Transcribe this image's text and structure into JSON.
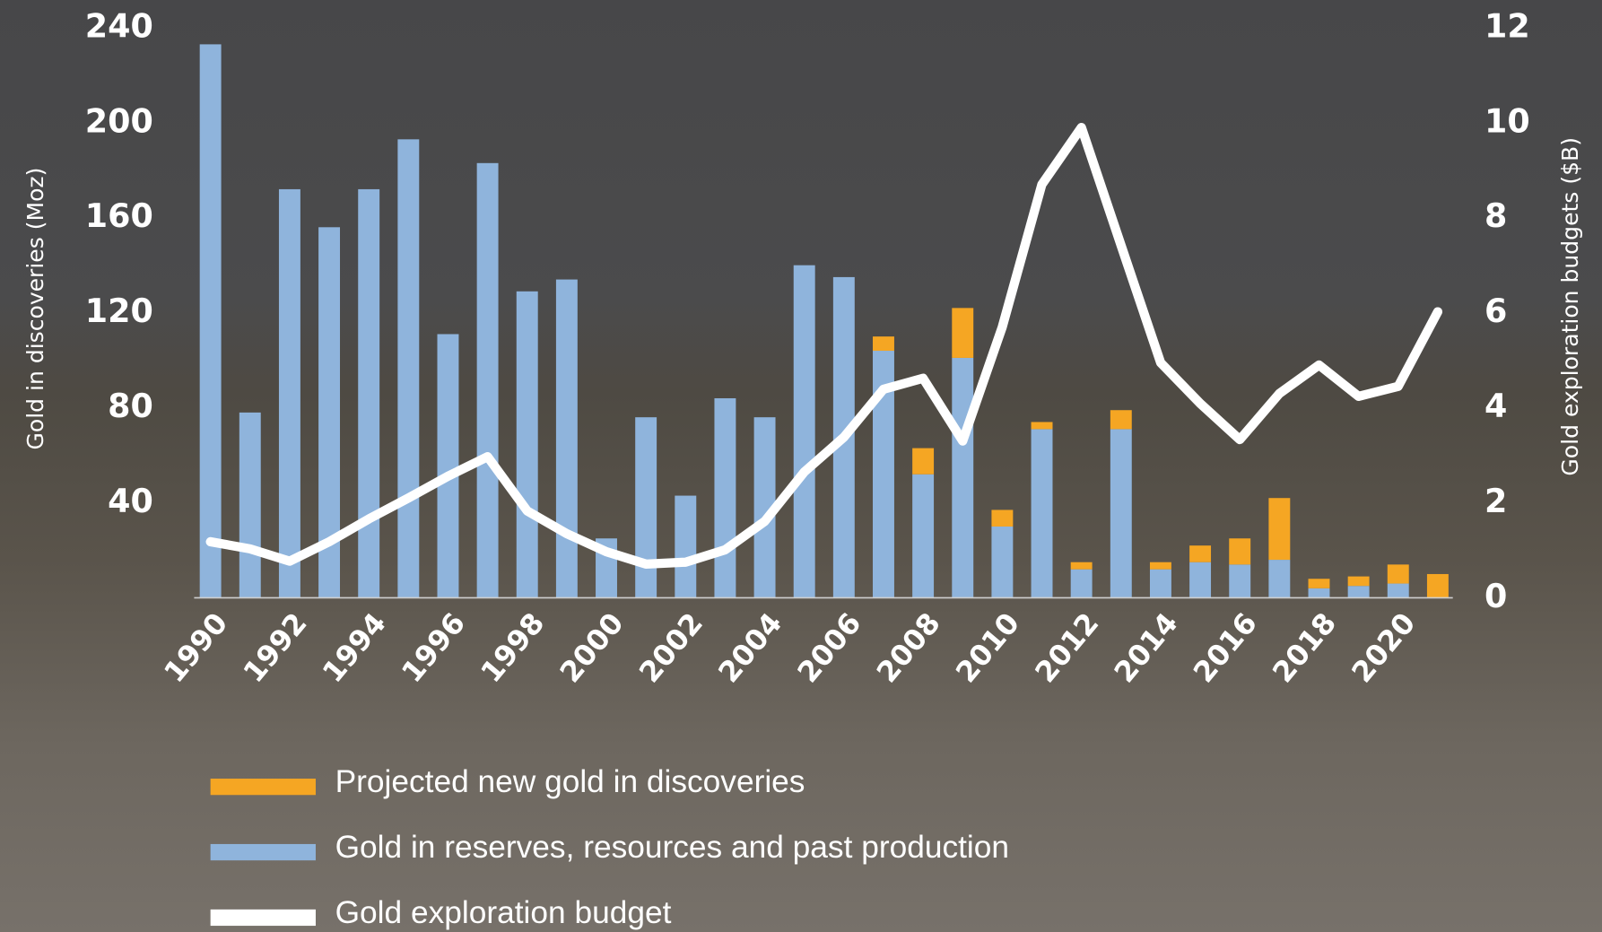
{
  "chart_data": {
    "type": "bar",
    "stacked": true,
    "y_label": "Gold in discoveries (Moz)",
    "y2_label": "Gold exploration budgets ($B)",
    "categories": [
      "1990",
      null,
      "1992",
      null,
      "1994",
      null,
      "1996",
      null,
      "1998",
      null,
      "2000",
      null,
      "2002",
      null,
      "2004",
      null,
      "2006",
      null,
      "2008",
      null,
      "2010",
      null,
      "2012",
      null,
      "2014",
      null,
      "2016",
      null,
      "2018",
      null,
      "2020",
      null
    ],
    "ylim": [
      0,
      240
    ],
    "yticks": [
      40,
      80,
      120,
      160,
      200,
      240
    ],
    "y2lim": [
      0,
      12
    ],
    "y2ticks": [
      0,
      2,
      4,
      6,
      8,
      10,
      12
    ],
    "series": [
      {
        "name": "Gold in reserves, resources and past production",
        "color": "#8fb4dc",
        "values": [
          233,
          78,
          172,
          156,
          172,
          193,
          111,
          183,
          129,
          134,
          25,
          76,
          43,
          84,
          76,
          140,
          135,
          104,
          52,
          101,
          30,
          71,
          12,
          71,
          12,
          15,
          14,
          16,
          4,
          5,
          6,
          0
        ]
      },
      {
        "name": "Projected new gold in discoveries",
        "color": "#f5a623",
        "values": [
          0,
          0,
          0,
          0,
          0,
          0,
          0,
          0,
          0,
          0,
          0,
          0,
          0,
          0,
          0,
          0,
          0,
          6,
          11,
          21,
          7,
          3,
          3,
          8,
          3,
          7,
          11,
          26,
          4,
          4,
          8,
          10
        ]
      },
      {
        "name": "Gold exploration budget",
        "type": "line",
        "axis": "y2",
        "color": "#ffffff",
        "values": [
          1.18,
          1.03,
          0.77,
          1.18,
          1.66,
          2.1,
          2.56,
          2.97,
          1.83,
          1.35,
          0.97,
          0.71,
          0.75,
          1.01,
          1.61,
          2.65,
          3.38,
          4.39,
          4.62,
          3.3,
          5.7,
          8.7,
          9.9,
          7.42,
          4.95,
          4.09,
          3.33,
          4.3,
          4.9,
          4.24,
          4.45,
          6.02
        ]
      }
    ]
  }
}
